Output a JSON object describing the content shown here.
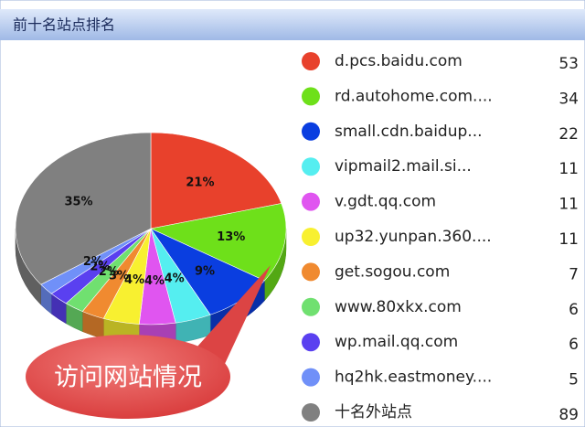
{
  "chart_data": {
    "type": "pie",
    "title": "前十名站点排名",
    "annotation": "访问网站情况",
    "categories": [
      "d.pcs.baidu.com",
      "rd.autohome.com....",
      "small.cdn.baidup...",
      "vipmail2.mail.si...",
      "v.gdt.qq.com",
      "up32.yunpan.360....",
      "get.sogou.com",
      "www.80xkx.com",
      "wp.mail.qq.com",
      "hq2hk.eastmoney....",
      "十名外站点"
    ],
    "values": [
      53,
      34,
      22,
      11,
      11,
      11,
      7,
      6,
      6,
      5,
      89
    ],
    "value_labels": [
      "21%",
      "13%",
      "9%",
      "4%",
      "4%",
      "4%",
      "3%",
      "2%",
      "2%",
      "2%",
      "35%"
    ],
    "colors": [
      "#e8412c",
      "#6ee01a",
      "#0a3ee0",
      "#55eef0",
      "#e055f0",
      "#f8f030",
      "#f08a30",
      "#70e070",
      "#5a40f0",
      "#7090f8",
      "#808080"
    ],
    "legend": "right"
  }
}
